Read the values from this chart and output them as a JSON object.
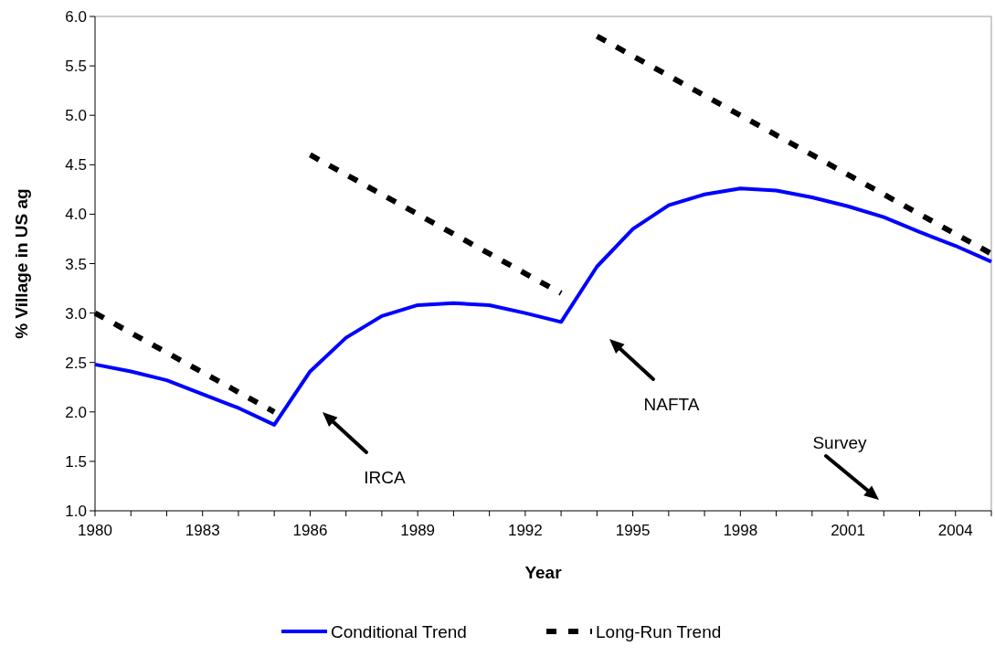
{
  "chart_data": {
    "type": "line",
    "xlabel": "Year",
    "ylabel": "% Village in US ag",
    "x": [
      1980,
      1981,
      1982,
      1983,
      1984,
      1985,
      1986,
      1987,
      1988,
      1989,
      1990,
      1991,
      1992,
      1993,
      1994,
      1995,
      1996,
      1997,
      1998,
      1999,
      2000,
      2001,
      2002,
      2003,
      2004,
      2005
    ],
    "series": [
      {
        "name": "Conditional Trend",
        "color": "#0000ff",
        "line_style": "solid",
        "values": [
          2.48,
          2.41,
          2.32,
          2.18,
          2.04,
          1.87,
          2.41,
          2.75,
          2.97,
          3.08,
          3.1,
          3.08,
          3.0,
          2.91,
          3.47,
          3.85,
          4.09,
          4.2,
          4.26,
          4.24,
          4.17,
          4.08,
          3.97,
          3.82,
          3.68,
          3.52
        ]
      },
      {
        "name": "Long-Run Trend",
        "color": "#000000",
        "line_style": "dashed",
        "x": [
          1980,
          1981,
          1982,
          1983,
          1984,
          1985,
          1985.5,
          1986,
          1987,
          1988,
          1989,
          1990,
          1991,
          1992,
          1993,
          1993.5,
          1994,
          1995,
          1996,
          1997,
          1998,
          1999,
          2000,
          2001,
          2002,
          2003,
          2004,
          2005
        ],
        "values": [
          3.0,
          2.8,
          2.6,
          2.4,
          2.2,
          2.0,
          null,
          4.6,
          4.4,
          4.2,
          4.0,
          3.8,
          3.6,
          3.4,
          3.2,
          null,
          5.8,
          5.6,
          5.4,
          5.2,
          5.0,
          4.8,
          4.6,
          4.4,
          4.2,
          4.0,
          3.8,
          3.6
        ]
      }
    ],
    "xlim": [
      1980,
      2005
    ],
    "xticks": [
      1980,
      {
        "value": 1981,
        "label": null
      },
      {
        "value": 1982,
        "label": null
      },
      1983,
      {
        "value": 1984,
        "label": null
      },
      {
        "value": 1985,
        "label": null
      },
      1986,
      {
        "value": 1987,
        "label": null
      },
      {
        "value": 1988,
        "label": null
      },
      1989,
      {
        "value": 1990,
        "label": null
      },
      {
        "value": 1991,
        "label": null
      },
      1992,
      {
        "value": 1993,
        "label": null
      },
      {
        "value": 1994,
        "label": null
      },
      1995,
      {
        "value": 1996,
        "label": null
      },
      {
        "value": 1997,
        "label": null
      },
      1998,
      {
        "value": 1999,
        "label": null
      },
      {
        "value": 2000,
        "label": null
      },
      2001,
      {
        "value": 2002,
        "label": null
      },
      {
        "value": 2003,
        "label": null
      },
      2004,
      {
        "value": 2005,
        "label": null
      }
    ],
    "ylim": [
      1,
      6
    ],
    "yticks": [
      {
        "value": 1,
        "label": "1.0"
      },
      1.5,
      {
        "value": 2,
        "label": "2.0"
      },
      2.5,
      {
        "value": 3,
        "label": "3.0"
      },
      3.5,
      {
        "value": 4,
        "label": "4.0"
      },
      4.5,
      {
        "value": 5,
        "label": "5.0"
      },
      5.5,
      {
        "value": 6,
        "label": "6.0"
      }
    ],
    "grid": false,
    "legend": "bottom",
    "annotations": [
      "IRCA",
      "NAFTA",
      "Survey"
    ]
  }
}
